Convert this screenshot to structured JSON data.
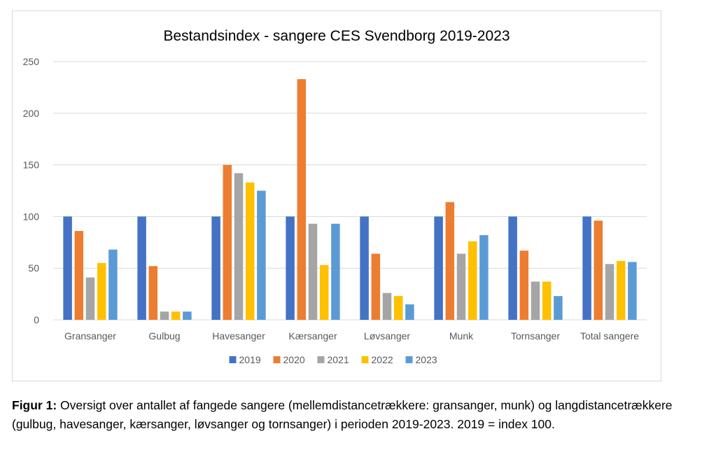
{
  "chart_data": {
    "type": "bar",
    "title": "Bestandsindex - sangere CES Svendborg 2019-2023",
    "xlabel": "",
    "ylabel": "",
    "categories": [
      "Gransanger",
      "Gulbug",
      "Havesanger",
      "Kærsanger",
      "Løvsanger",
      "Munk",
      "Tornsanger",
      "Total sangere"
    ],
    "series": [
      {
        "name": "2019",
        "color": "#4472C4",
        "values": [
          100,
          100,
          100,
          100,
          100,
          100,
          100,
          100
        ]
      },
      {
        "name": "2020",
        "color": "#ED7D31",
        "values": [
          86,
          52,
          150,
          233,
          64,
          114,
          67,
          96
        ]
      },
      {
        "name": "2021",
        "color": "#A5A5A5",
        "values": [
          41,
          8,
          142,
          93,
          26,
          64,
          37,
          54
        ]
      },
      {
        "name": "2022",
        "color": "#FFC000",
        "values": [
          55,
          8,
          133,
          53,
          23,
          76,
          37,
          57
        ]
      },
      {
        "name": "2023",
        "color": "#5B9BD5",
        "values": [
          68,
          8,
          125,
          93,
          15,
          82,
          23,
          56
        ]
      }
    ],
    "ylim": [
      0,
      250
    ],
    "yticks": [
      0,
      50,
      100,
      150,
      200,
      250
    ],
    "grid": true,
    "legend": "bottom"
  },
  "caption": {
    "lead": "Figur 1:",
    "text": " Oversigt over antallet af fangede sangere (mellemdistancetrækkere: gransanger, munk) og langdistancetrækkere (gulbug, havesanger, kærsanger, løvsanger og tornsanger) i perioden 2019-2023. 2019 = index 100."
  }
}
